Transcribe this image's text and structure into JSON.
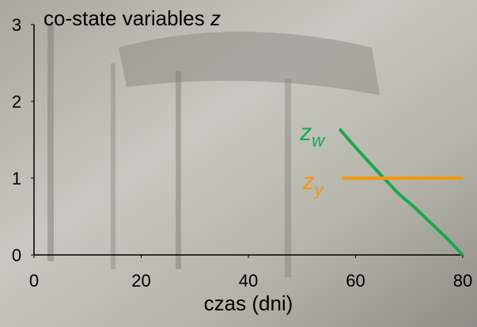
{
  "chart_data": {
    "type": "line",
    "title": "co-state variables",
    "title_symbol": "z",
    "x_label": "czas (dni)",
    "xlim": [
      0,
      80
    ],
    "xticks": [
      0,
      20,
      40,
      60,
      80
    ],
    "ylim": [
      0,
      3
    ],
    "yticks": [
      0,
      1,
      2,
      3
    ],
    "series": [
      {
        "name": "z",
        "subscript": "w",
        "color": "#1aa84a",
        "x": [
          57,
          60,
          63,
          65,
          68,
          71,
          74,
          77,
          80
        ],
        "values": [
          1.64,
          1.4,
          1.17,
          1.02,
          0.8,
          0.62,
          0.42,
          0.22,
          0
        ]
      },
      {
        "name": "z",
        "subscript": "y",
        "color": "#f5960f",
        "x": [
          57.5,
          80
        ],
        "values": [
          1,
          1
        ]
      }
    ]
  }
}
